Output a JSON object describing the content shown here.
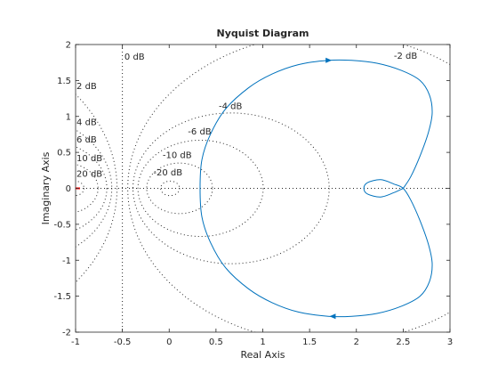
{
  "chart_data": {
    "type": "line",
    "title": "Nyquist Diagram",
    "xlabel": "Real Axis",
    "ylabel": "Imaginary Axis",
    "xlim": [
      -1,
      3
    ],
    "ylim": [
      -2,
      2
    ],
    "xticks": [
      -1,
      -0.5,
      0,
      0.5,
      1,
      1.5,
      2,
      2.5,
      3
    ],
    "yticks": [
      -2,
      -1.5,
      -1,
      -0.5,
      0,
      0.5,
      1,
      1.5,
      2
    ],
    "grid": "off",
    "critical_point": {
      "x": -1,
      "y": 0,
      "color": "#ff0000"
    },
    "db_grid": {
      "circles": [
        {
          "label": "-2 dB",
          "db": -2
        },
        {
          "label": "-4 dB",
          "db": -4
        },
        {
          "label": "-6 dB",
          "db": -6
        },
        {
          "label": "-10 dB",
          "db": -10
        },
        {
          "label": "-20 dB",
          "db": -20
        },
        {
          "label": "2 dB",
          "db": 2
        },
        {
          "label": "4 dB",
          "db": 4
        },
        {
          "label": "6 dB",
          "db": 6
        },
        {
          "label": "10 dB",
          "db": 10
        },
        {
          "label": "20 dB",
          "db": 20
        }
      ],
      "zero_db": {
        "label": "0 dB",
        "x": -0.5
      }
    },
    "series": [
      {
        "color": "#0072bd",
        "points": [
          [
            2.5,
            0.0
          ],
          [
            2.58,
            0.16
          ],
          [
            2.68,
            0.45
          ],
          [
            2.77,
            0.78
          ],
          [
            2.81,
            1.05
          ],
          [
            2.78,
            1.3
          ],
          [
            2.68,
            1.5
          ],
          [
            2.48,
            1.64
          ],
          [
            2.22,
            1.74
          ],
          [
            1.95,
            1.78
          ],
          [
            1.7,
            1.78
          ],
          [
            1.38,
            1.72
          ],
          [
            1.1,
            1.59
          ],
          [
            0.85,
            1.4
          ],
          [
            0.6,
            1.1
          ],
          [
            0.44,
            0.75
          ],
          [
            0.35,
            0.4
          ],
          [
            0.33,
            0.0
          ],
          [
            0.35,
            -0.4
          ],
          [
            0.44,
            -0.75
          ],
          [
            0.6,
            -1.1
          ],
          [
            0.85,
            -1.4
          ],
          [
            1.1,
            -1.59
          ],
          [
            1.38,
            -1.72
          ],
          [
            1.7,
            -1.78
          ],
          [
            1.95,
            -1.78
          ],
          [
            2.22,
            -1.74
          ],
          [
            2.48,
            -1.64
          ],
          [
            2.68,
            -1.5
          ],
          [
            2.78,
            -1.3
          ],
          [
            2.81,
            -1.05
          ],
          [
            2.77,
            -0.78
          ],
          [
            2.68,
            -0.45
          ],
          [
            2.58,
            -0.16
          ],
          [
            2.5,
            0.0
          ],
          [
            2.4,
            0.06
          ],
          [
            2.26,
            0.12
          ],
          [
            2.12,
            0.08
          ],
          [
            2.08,
            0.0
          ],
          [
            2.12,
            -0.08
          ],
          [
            2.26,
            -0.12
          ],
          [
            2.4,
            -0.06
          ],
          [
            2.5,
            0.0
          ]
        ],
        "arrows": [
          {
            "x": 1.7,
            "y": 1.78,
            "direction": "right"
          },
          {
            "x": 1.75,
            "y": -1.78,
            "direction": "left"
          }
        ]
      }
    ]
  }
}
